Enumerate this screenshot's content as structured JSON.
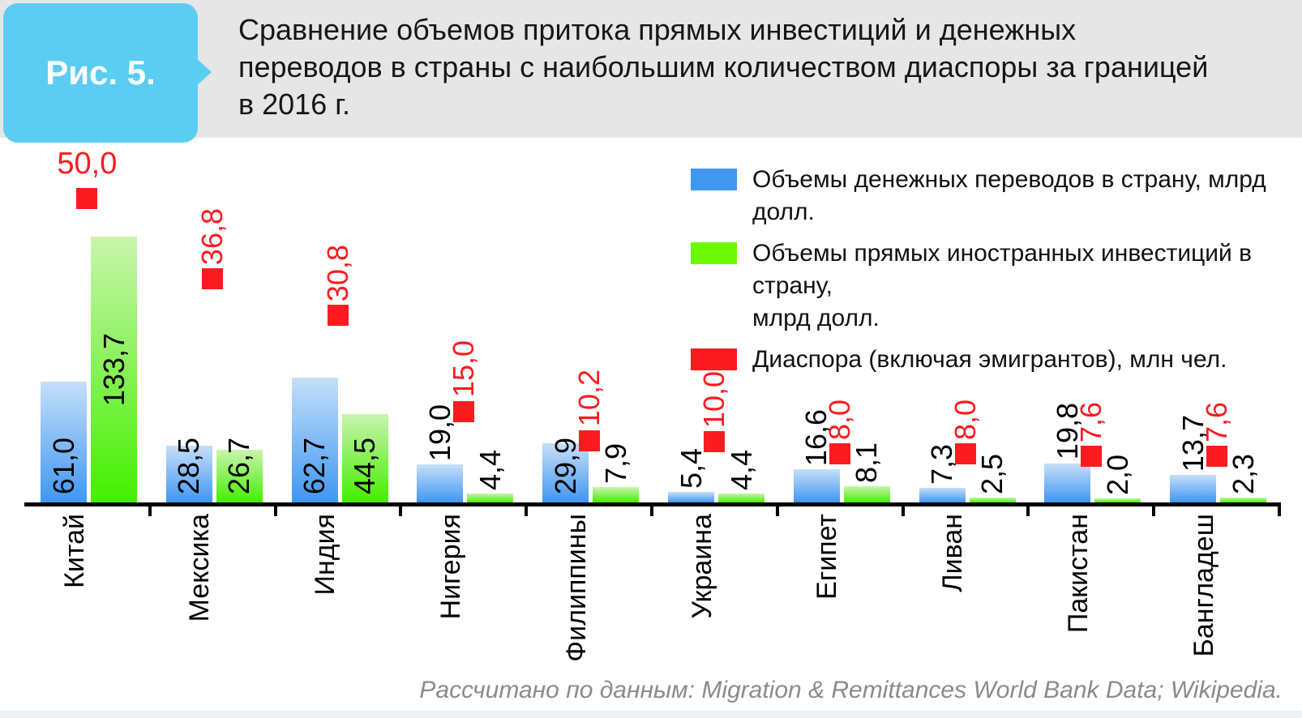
{
  "figure_label": "Рис. 5.",
  "title_lines": [
    "Сравнение объемов притока прямых инвестиций и денежных",
    "переводов в страны с наибольшим количеством диаспоры за границей",
    "в 2016 г."
  ],
  "source_note": "Рассчитано по данным: Migration & Remittances World Bank Data; Wikipedia.",
  "colors": {
    "badge_background": "#5bcdf2",
    "badge_text": "#ffffff",
    "header_band": "#e6e6e6",
    "remittances_bar_bottom": "#3f97f2",
    "remittances_bar_top": "#c6dff8",
    "fdi_bar_bottom": "#44ef00",
    "fdi_bar_top": "#c9f4ad",
    "diaspora_marker": "#fa1c20",
    "axis": "#000000",
    "value_label_text": "#000000",
    "diaspora_label_text": "#fa1c20",
    "source_note_text": "#8b8b8b"
  },
  "legend": {
    "position": "top-right",
    "items": [
      {
        "series": "remittances",
        "color": "#3f97f2",
        "lines": [
          "Объемы денежных переводов в страну, млрд долл."
        ]
      },
      {
        "series": "fdi",
        "color": "#6cf900",
        "lines": [
          "Объемы прямых иностранных инвестиций в страну,",
          "млрд долл."
        ]
      },
      {
        "series": "diaspora",
        "color": "#fa1c20",
        "lines": [
          "Диаспора (включая эмигрантов), млн чел."
        ]
      }
    ]
  },
  "chart_data": {
    "type": "bar",
    "title": "Сравнение объемов притока прямых инвестиций и денежных переводов в страны с наибольшим количеством диаспоры за границей в 2016 г.",
    "categories": [
      "Китай",
      "Мексика",
      "Индия",
      "Нигерия",
      "Филиппины",
      "Украина",
      "Египет",
      "Ливан",
      "Пакистан",
      "Бангладеш"
    ],
    "series": [
      {
        "name": "Объемы денежных переводов в страну, млрд долл.",
        "kind": "bar",
        "color": "#3f97f2",
        "values": [
          61.0,
          28.5,
          62.7,
          19.0,
          29.9,
          5.4,
          16.6,
          7.3,
          19.8,
          13.7
        ]
      },
      {
        "name": "Объемы прямых иностранных инвестиций в страну, млрд долл.",
        "kind": "bar",
        "color": "#6cf900",
        "values": [
          133.7,
          26.7,
          44.5,
          4.4,
          7.9,
          4.4,
          8.1,
          2.5,
          2.0,
          2.3
        ]
      },
      {
        "name": "Диаспора (включая эмигрантов), млн чел.",
        "kind": "square-marker",
        "color": "#fa1c20",
        "values": [
          50.0,
          36.8,
          30.8,
          15.0,
          10.2,
          10.0,
          8.0,
          8.0,
          7.6,
          7.6
        ]
      }
    ],
    "value_labels_format": "decimal-comma-1dp",
    "axis": {
      "baseline_only": true,
      "gridlines": false,
      "y_axis_ticks": "none",
      "x_labels_rotated_90": true
    },
    "legend_position": "top-right"
  }
}
